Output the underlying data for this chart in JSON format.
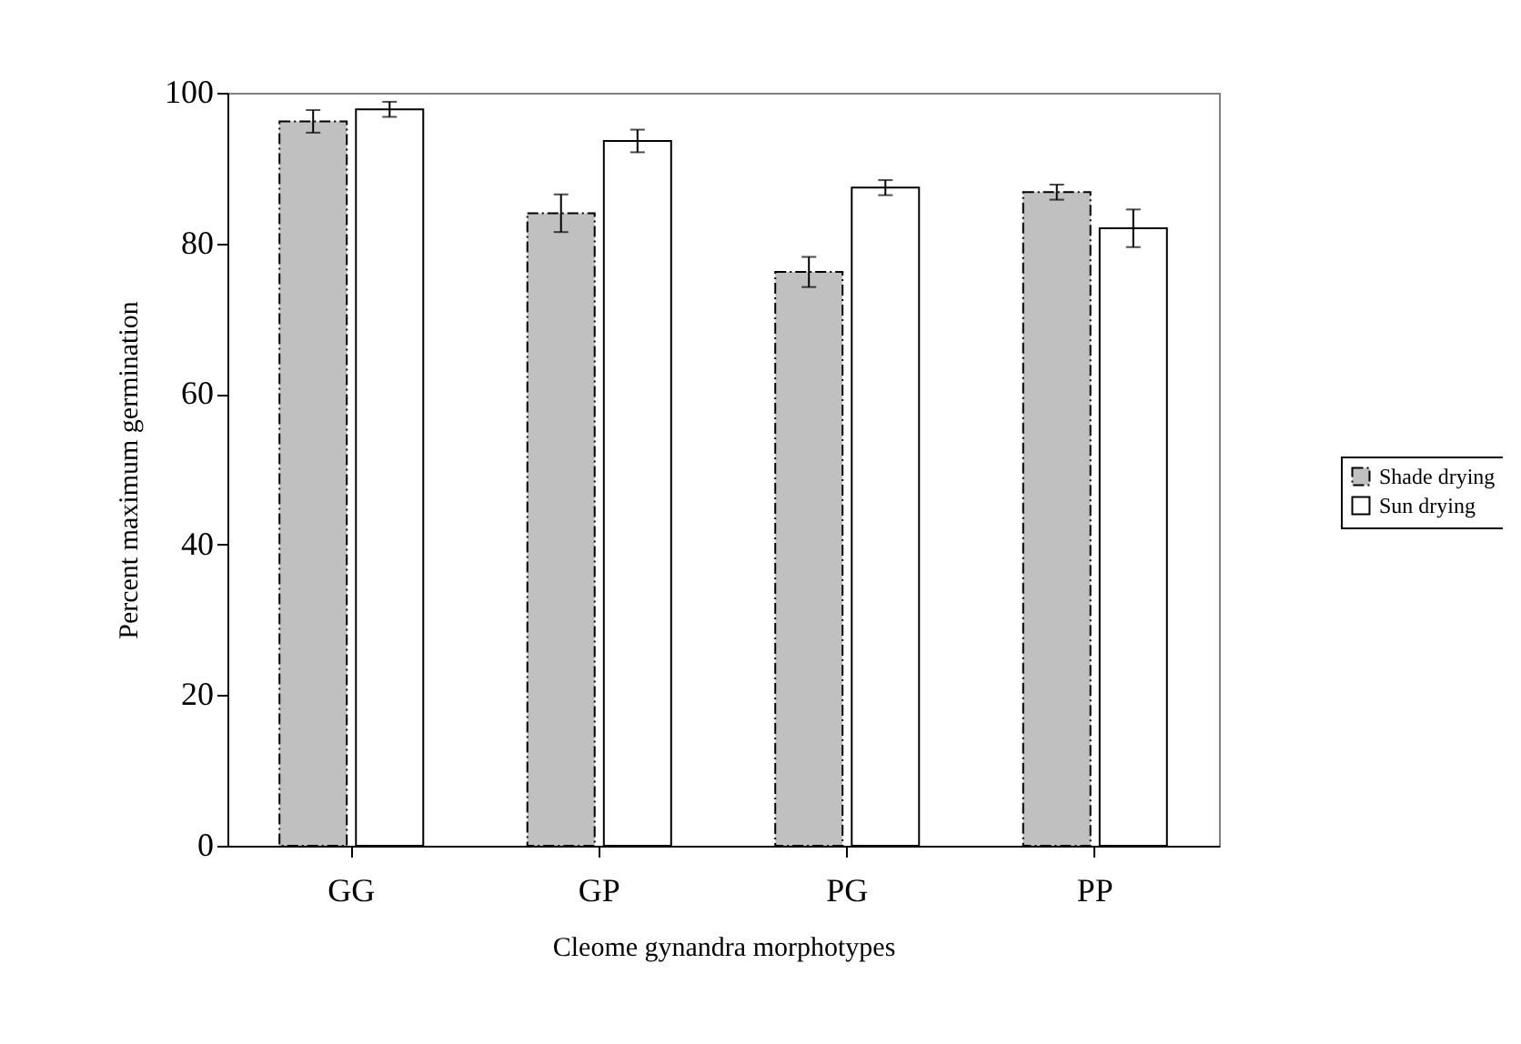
{
  "chart_data": {
    "type": "bar",
    "xlabel": "Cleome gynandra morphotypes",
    "ylabel": "Percent maximum germination",
    "categories": [
      "GG",
      "GP",
      "PG",
      "PP"
    ],
    "series": [
      {
        "name": "Shade drying",
        "color": "#c0c0c0",
        "line_style": "dashed",
        "values": [
          96.2,
          84.0,
          76.2,
          86.8
        ],
        "errors": [
          1.5,
          2.5,
          2.0,
          1.0
        ]
      },
      {
        "name": "Sun drying",
        "color": "#ffffff",
        "line_style": "solid",
        "values": [
          97.8,
          93.6,
          87.4,
          82.0
        ],
        "errors": [
          1.0,
          1.5,
          1.0,
          2.5
        ]
      }
    ],
    "ylim": [
      0,
      100
    ],
    "yticks": [
      0,
      20,
      40,
      60,
      80,
      100
    ],
    "grid": false,
    "legend": "right"
  }
}
